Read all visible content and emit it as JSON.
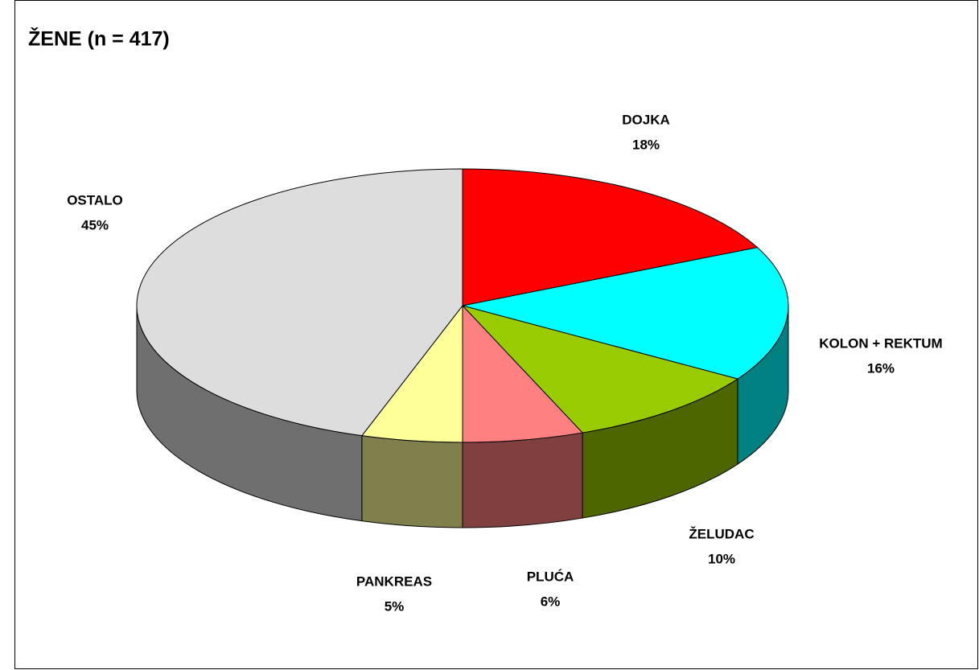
{
  "chart_data": {
    "type": "pie",
    "title": "ŽENE (n = 417)",
    "categories": [
      "DOJKA",
      "KOLON + REKTUM",
      "ŽELUDAC",
      "PLUĆA",
      "PANKREAS",
      "OSTALO"
    ],
    "values": [
      18,
      16,
      10,
      6,
      5,
      45
    ],
    "value_labels": [
      "18%",
      "16%",
      "10%",
      "6%",
      "5%",
      "45%"
    ],
    "colors": [
      "#ff0000",
      "#00ffff",
      "#99cc00",
      "#ff8080",
      "#ffff99",
      "#dddddd"
    ]
  }
}
